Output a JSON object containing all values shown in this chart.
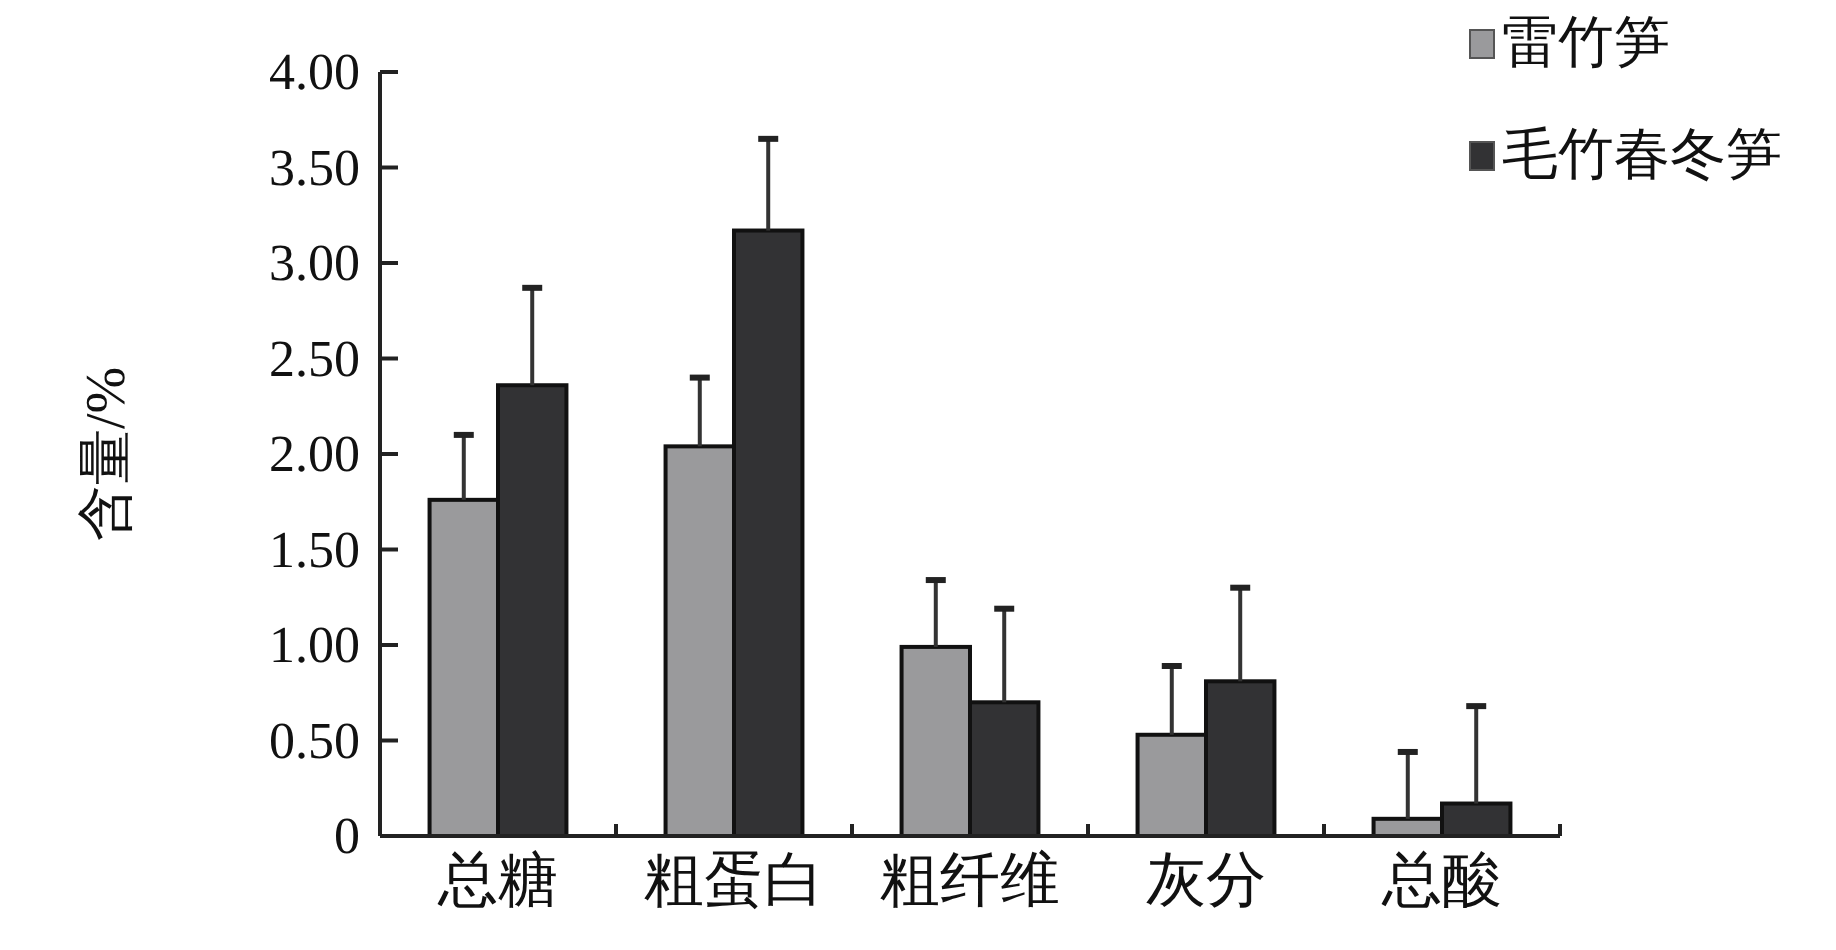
{
  "chart_data": {
    "type": "bar",
    "ylabel": "含量/%",
    "categories": [
      "总糖",
      "粗蛋白",
      "粗纤维",
      "灰分",
      "总酸"
    ],
    "series": [
      {
        "name": "雷竹笋",
        "color": "#9a9a9c",
        "values": [
          1.76,
          2.04,
          0.99,
          0.53,
          0.09
        ],
        "errors": [
          [
            1.76,
            2.1
          ],
          [
            2.04,
            2.4
          ],
          [
            0.99,
            1.34
          ],
          [
            0.53,
            0.89
          ],
          [
            0.09,
            0.44
          ]
        ]
      },
      {
        "name": "毛竹春冬笋",
        "color": "#323234",
        "values": [
          2.36,
          3.17,
          0.7,
          0.81,
          0.17
        ],
        "errors": [
          [
            2.36,
            2.87
          ],
          [
            3.17,
            3.65
          ],
          [
            0.7,
            1.19
          ],
          [
            0.81,
            1.3
          ],
          [
            0.17,
            0.68
          ]
        ]
      }
    ],
    "ylim": [
      0,
      4
    ],
    "yticks": [
      {
        "value": 0,
        "label": "0"
      },
      {
        "value": 0.5,
        "label": "0.50"
      },
      {
        "value": 1,
        "label": "1.00"
      },
      {
        "value": 1.5,
        "label": "1.50"
      },
      {
        "value": 2,
        "label": "2.00"
      },
      {
        "value": 2.5,
        "label": "2.50"
      },
      {
        "value": 3,
        "label": "3.00"
      },
      {
        "value": 3.5,
        "label": "3.50"
      },
      {
        "value": 4,
        "label": "4.00"
      }
    ],
    "legend": "top right",
    "grid": false
  }
}
